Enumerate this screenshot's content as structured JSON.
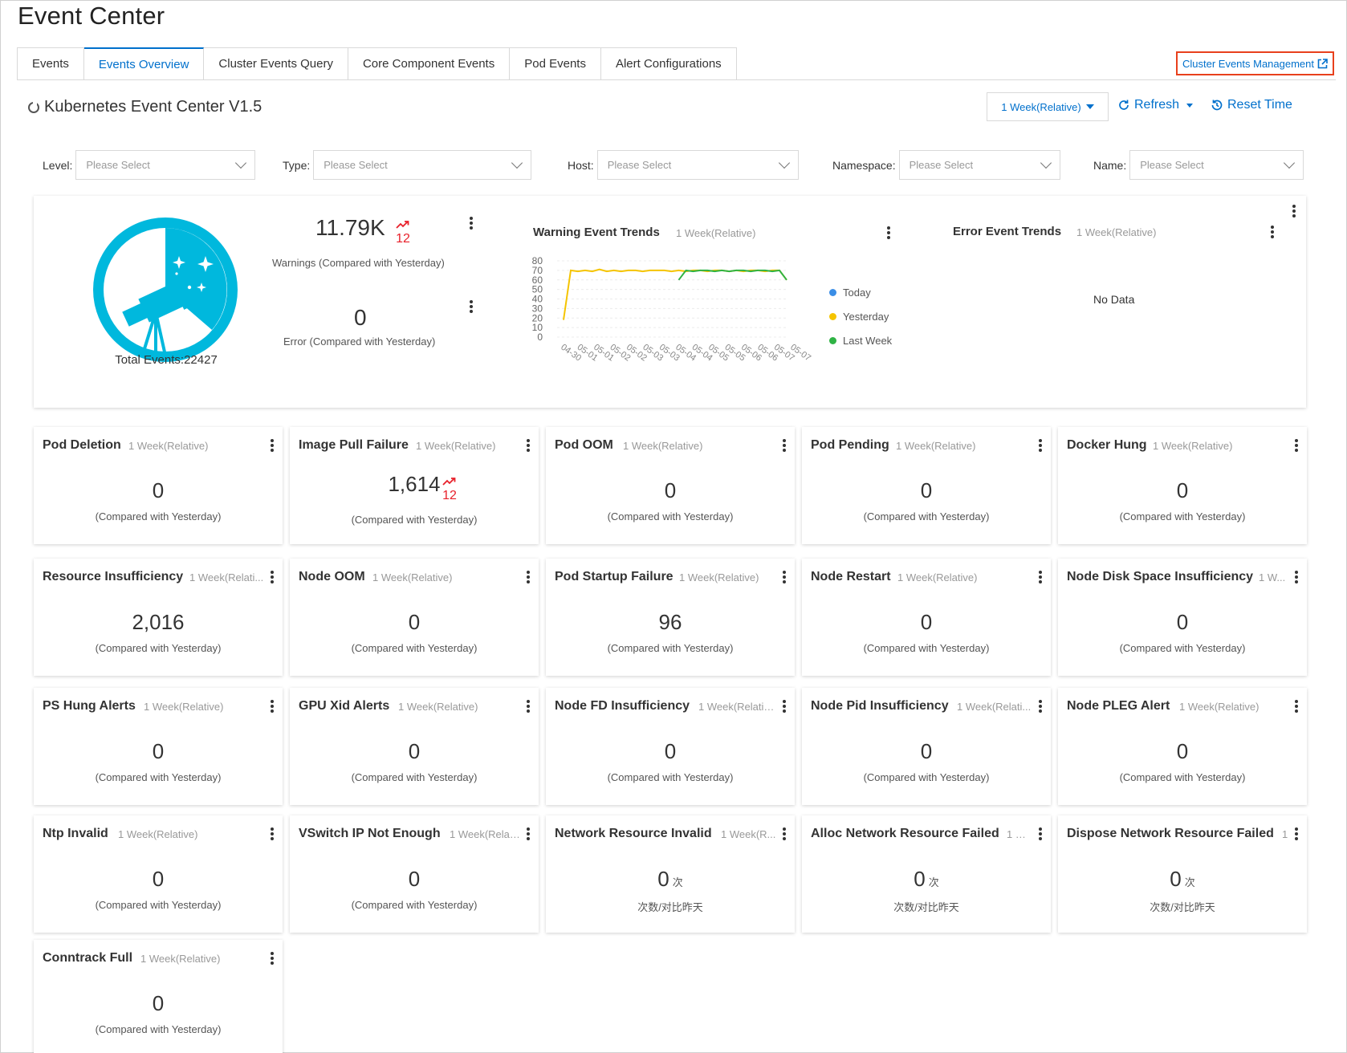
{
  "page_title": "Event Center",
  "tabs": [
    {
      "label": "Events",
      "active": false
    },
    {
      "label": "Events Overview",
      "active": true
    },
    {
      "label": "Cluster Events Query",
      "active": false
    },
    {
      "label": "Core Component Events",
      "active": false
    },
    {
      "label": "Pod Events",
      "active": false
    },
    {
      "label": "Alert Configurations",
      "active": false
    }
  ],
  "mgmt_link": "Cluster Events Management",
  "dashboard_title": "Kubernetes Event Center V1.5",
  "toolbar": {
    "time_range": "1 Week(Relative)",
    "refresh": "Refresh",
    "reset": "Reset Time"
  },
  "filters": [
    {
      "label": "Level:",
      "placeholder": "Please Select"
    },
    {
      "label": "Type:",
      "placeholder": "Please Select"
    },
    {
      "label": "Host:",
      "placeholder": "Please Select"
    },
    {
      "label": "Namespace:",
      "placeholder": "Please Select"
    },
    {
      "label": "Name:",
      "placeholder": "Please Select"
    }
  ],
  "summary": {
    "total_label": "Total Events:22427",
    "warnings_value": "11.79K",
    "warnings_delta": "12",
    "warnings_label": "Warnings (Compared with Yesterday)",
    "error_value": "0",
    "error_label": "Error (Compared with Yesterday)"
  },
  "warning_trends": {
    "title": "Warning Event Trends",
    "range": "1 Week(Relative)"
  },
  "error_trends": {
    "title": "Error Event Trends",
    "range": "1 Week(Relative)",
    "empty": "No Data"
  },
  "chart_data": {
    "type": "line",
    "title": "Warning Event Trends",
    "x_ticks": [
      "04-30",
      "05-01",
      "05-01",
      "05-02",
      "05-02",
      "05-03",
      "05-03",
      "05-04",
      "05-04",
      "05-05",
      "05-05",
      "05-06",
      "05-06",
      "05-07",
      "05-07"
    ],
    "ylim": [
      0,
      80
    ],
    "y_ticks": [
      "0",
      "10",
      "20",
      "30",
      "40",
      "50",
      "60",
      "70",
      "80"
    ],
    "legend_position": "right",
    "series": [
      {
        "name": "Today",
        "color": "#3a8ee6",
        "values": []
      },
      {
        "name": "Yesterday",
        "color": "#f5c400",
        "values": [
          18,
          70,
          69,
          70,
          69,
          71,
          69,
          70,
          69,
          70,
          70,
          69,
          70,
          70,
          70,
          69,
          70,
          69,
          70,
          70,
          69,
          70,
          70,
          69,
          70,
          69,
          70,
          70,
          69,
          70,
          70,
          60
        ]
      },
      {
        "name": "Last Week",
        "color": "#2fb344",
        "values": [
          null,
          null,
          null,
          null,
          null,
          null,
          null,
          null,
          null,
          null,
          null,
          null,
          null,
          null,
          null,
          null,
          60,
          70,
          69,
          70,
          70,
          69,
          70,
          69,
          70,
          70,
          69,
          70,
          70,
          69,
          70,
          60
        ]
      }
    ]
  },
  "cards": [
    {
      "title": "Pod Deletion",
      "range": "1 Week(Relative)",
      "value": "0",
      "sub": "(Compared with Yesterday)"
    },
    {
      "title": "Image Pull Failure",
      "range": "1 Week(Relative)",
      "value": "1,614",
      "sub": "(Compared with Yesterday)",
      "delta": "12"
    },
    {
      "title": "Pod OOM",
      "range": "1 Week(Relative)",
      "value": "0",
      "sub": "(Compared with Yesterday)"
    },
    {
      "title": "Pod Pending",
      "range": "1 Week(Relative)",
      "value": "0",
      "sub": "(Compared with Yesterday)"
    },
    {
      "title": "Docker Hung",
      "range": "1 Week(Relative)",
      "value": "0",
      "sub": "(Compared with Yesterday)"
    },
    {
      "title": "Resource Insufficiency",
      "range": "1 Week(Relati...",
      "value": "2,016",
      "sub": "(Compared with Yesterday)"
    },
    {
      "title": "Node OOM",
      "range": "1 Week(Relative)",
      "value": "0",
      "sub": "(Compared with Yesterday)"
    },
    {
      "title": "Pod Startup Failure",
      "range": "1 Week(Relative)",
      "value": "96",
      "sub": "(Compared with Yesterday)"
    },
    {
      "title": "Node Restart",
      "range": "1 Week(Relative)",
      "value": "0",
      "sub": "(Compared with Yesterday)"
    },
    {
      "title": "Node Disk Space Insufficiency",
      "range": "1 W...",
      "value": "0",
      "sub": "(Compared with Yesterday)"
    },
    {
      "title": "PS Hung Alerts",
      "range": "1 Week(Relative)",
      "value": "0",
      "sub": "(Compared with Yesterday)"
    },
    {
      "title": "GPU Xid Alerts",
      "range": "1 Week(Relative)",
      "value": "0",
      "sub": "(Compared with Yesterday)"
    },
    {
      "title": "Node FD Insufficiency",
      "range": "1 Week(Relative)",
      "value": "0",
      "sub": "(Compared with Yesterday)"
    },
    {
      "title": "Node Pid Insufficiency",
      "range": "1 Week(Relati...",
      "value": "0",
      "sub": "(Compared with Yesterday)"
    },
    {
      "title": "Node PLEG Alert",
      "range": "1 Week(Relative)",
      "value": "0",
      "sub": "(Compared with Yesterday)"
    },
    {
      "title": "Ntp Invalid",
      "range": "1 Week(Relative)",
      "value": "0",
      "sub": "(Compared with Yesterday)"
    },
    {
      "title": "VSwitch IP Not Enough",
      "range": "1 Week(Relat...",
      "value": "0",
      "sub": "(Compared with Yesterday)"
    },
    {
      "title": "Network Resource Invalid",
      "range": "1 Week(R...",
      "value": "0",
      "unit": "次",
      "sub": "次数/对比昨天"
    },
    {
      "title": "Alloc Network Resource Failed",
      "range": "1 W...",
      "value": "0",
      "unit": "次",
      "sub": "次数/对比昨天"
    },
    {
      "title": "Dispose Network Resource Failed",
      "range": "1...",
      "value": "0",
      "unit": "次",
      "sub": "次数/对比昨天"
    },
    {
      "title": "Conntrack Full",
      "range": "1 Week(Relative)",
      "value": "0",
      "sub": "(Compared with Yesterday)"
    }
  ]
}
